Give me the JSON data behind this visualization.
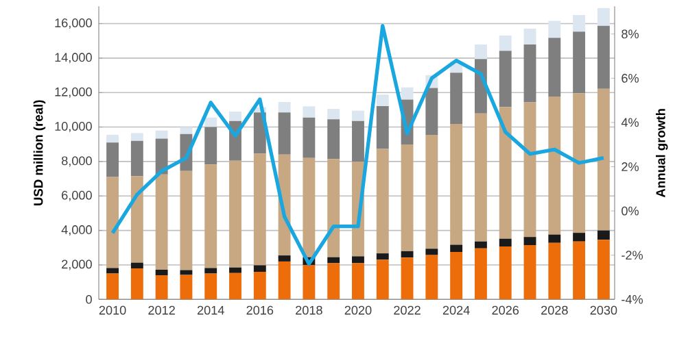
{
  "chart_data": {
    "type": "bar",
    "stacked": true,
    "ylabel": "USD million (real)",
    "y2label": "Annual growth",
    "x": [
      2010,
      2011,
      2012,
      2013,
      2014,
      2015,
      2016,
      2017,
      2018,
      2019,
      2020,
      2021,
      2022,
      2023,
      2024,
      2025,
      2026,
      2027,
      2028,
      2029,
      2030
    ],
    "xlim": [
      2009.44,
      2030.45
    ],
    "xticks": [
      2010,
      2012,
      2014,
      2016,
      2018,
      2020,
      2022,
      2024,
      2026,
      2028,
      2030
    ],
    "ylim": [
      0,
      17000
    ],
    "yticks": [
      0,
      {
        "value": 2000,
        "label": "2,000"
      },
      {
        "value": 4000,
        "label": "4,000"
      },
      {
        "value": 6000,
        "label": "6,000"
      },
      {
        "value": 8000,
        "label": "8,000"
      },
      {
        "value": 10000,
        "label": "10,000"
      },
      {
        "value": 12000,
        "label": "12,000"
      },
      {
        "value": 14000,
        "label": "14,000"
      },
      {
        "value": 16000,
        "label": "16,000"
      }
    ],
    "y2lim": [
      -4,
      9.25
    ],
    "y2ticks": [
      {
        "value": -4,
        "label": "-4%"
      },
      {
        "value": -2,
        "label": "-2%"
      },
      {
        "value": 0,
        "label": "0%"
      },
      {
        "value": 2,
        "label": "2%"
      },
      {
        "value": 4,
        "label": "4%"
      },
      {
        "value": 6,
        "label": "6%"
      },
      {
        "value": 8,
        "label": "8%"
      }
    ],
    "grid": "y",
    "series": [
      {
        "color": "#ed6d0b",
        "values": [
          1500,
          1800,
          1400,
          1420,
          1500,
          1530,
          1600,
          2200,
          2000,
          2100,
          2100,
          2300,
          2430,
          2570,
          2750,
          2960,
          3070,
          3150,
          3280,
          3360,
          3460
        ]
      },
      {
        "color": "#1a1a1a",
        "values": [
          320,
          330,
          320,
          280,
          320,
          320,
          380,
          350,
          450,
          350,
          400,
          370,
          370,
          370,
          420,
          400,
          450,
          470,
          480,
          500,
          540
        ]
      },
      {
        "color": "#c8a882",
        "values": [
          5280,
          5020,
          5530,
          5750,
          6010,
          6200,
          6470,
          5850,
          5750,
          5700,
          5500,
          6060,
          6190,
          6610,
          7010,
          7430,
          7640,
          7810,
          8010,
          8100,
          8220
        ]
      },
      {
        "color": "#7f7f7f",
        "values": [
          2000,
          2050,
          2080,
          2150,
          2170,
          2300,
          2400,
          2450,
          2350,
          2300,
          2350,
          2480,
          2600,
          2720,
          2970,
          3150,
          3260,
          3360,
          3410,
          3570,
          3650
        ]
      },
      {
        "color": "#dce6f0",
        "values": [
          450,
          450,
          470,
          400,
          550,
          550,
          300,
          600,
          650,
          600,
          600,
          670,
          710,
          740,
          650,
          850,
          890,
          920,
          980,
          970,
          1030
        ]
      },
      {
        "type": "line",
        "axis": "y2",
        "color": "#1aa7e0",
        "values": [
          -1,
          0.74,
          1.8,
          2.4,
          4.9,
          3.4,
          5.05,
          -0.25,
          -2.4,
          -0.7,
          -0.7,
          8.37,
          3.5,
          6.0,
          6.8,
          6.2,
          3.57,
          2.58,
          2.78,
          2.17,
          2.4
        ]
      }
    ]
  }
}
